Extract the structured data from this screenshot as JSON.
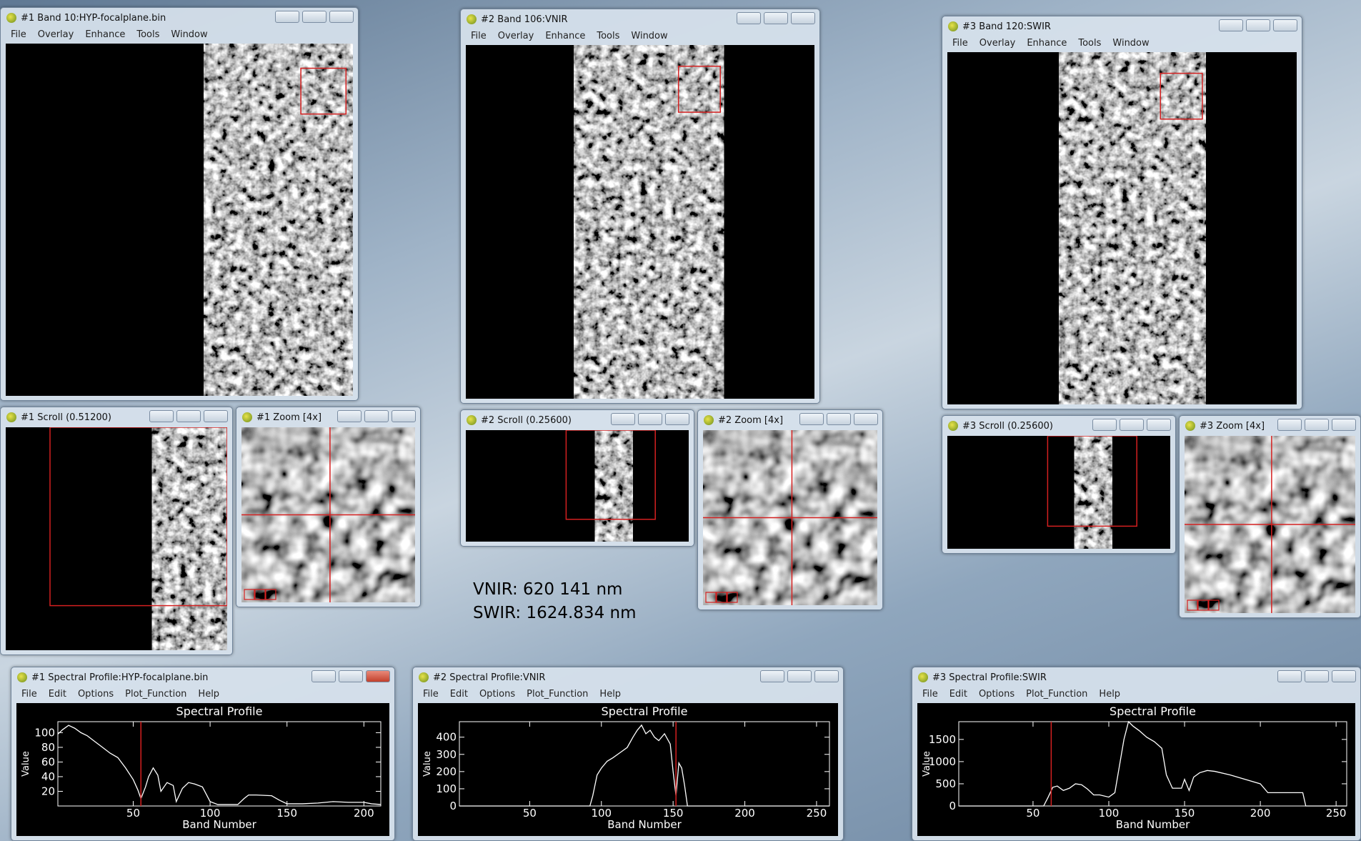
{
  "windows": [
    {
      "title": "#1 Band 10:HYP-focalplane.bin",
      "menu": [
        "File",
        "Overlay",
        "Enhance",
        "Tools",
        "Window"
      ]
    },
    {
      "title": "#2 Band 106:VNIR",
      "menu": [
        "File",
        "Overlay",
        "Enhance",
        "Tools",
        "Window"
      ]
    },
    {
      "title": "#3 Band 120:SWIR",
      "menu": [
        "File",
        "Overlay",
        "Enhance",
        "Tools",
        "Window"
      ]
    },
    {
      "title": "#1 Scroll (0.51200)"
    },
    {
      "title": "#1 Zoom [4x]"
    },
    {
      "title": "#2 Scroll (0.25600)"
    },
    {
      "title": "#2 Zoom [4x]"
    },
    {
      "title": "#3 Scroll (0.25600)"
    },
    {
      "title": "#3 Zoom [4x]"
    },
    {
      "title": "#1 Spectral Profile:HYP-focalplane.bin",
      "menu": [
        "File",
        "Edit",
        "Options",
        "Plot_Function",
        "Help"
      ]
    },
    {
      "title": "#2 Spectral Profile:VNIR",
      "menu": [
        "File",
        "Edit",
        "Options",
        "Plot_Function",
        "Help"
      ]
    },
    {
      "title": "#3 Spectral Profile:SWIR",
      "menu": [
        "File",
        "Edit",
        "Options",
        "Plot_Function",
        "Help"
      ]
    }
  ],
  "annotations": [
    "VNIR: 620 141 nm",
    "SWIR: 1624.834 nm"
  ],
  "chart_data": [
    {
      "type": "line",
      "title": "Spectral Profile",
      "x_label": "Band Number",
      "y_label": "Value",
      "xlim": [
        1,
        211
      ],
      "xticks": [
        50,
        100,
        150,
        200
      ],
      "ylim": [
        0,
        115
      ],
      "yticks": [
        20,
        40,
        60,
        80,
        100
      ],
      "x": [
        1,
        4,
        8,
        12,
        16,
        20,
        25,
        30,
        35,
        40,
        45,
        50,
        53,
        55,
        58,
        60,
        63,
        66,
        68,
        72,
        76,
        78,
        82,
        86,
        90,
        95,
        100,
        105,
        110,
        118,
        122,
        125,
        130,
        140,
        145,
        150,
        160,
        170,
        180,
        190,
        200,
        205,
        211
      ],
      "values": [
        98,
        104,
        110,
        106,
        100,
        96,
        88,
        80,
        72,
        66,
        52,
        36,
        22,
        10,
        26,
        40,
        52,
        42,
        20,
        32,
        28,
        6,
        24,
        32,
        30,
        26,
        6,
        2,
        2,
        2,
        10,
        15,
        15,
        14,
        8,
        3,
        3,
        4,
        6,
        5,
        5,
        3,
        2
      ],
      "color": "#ffffff",
      "cursor_band": 55,
      "cursor_color": "#d42020"
    },
    {
      "type": "line",
      "title": "Spectral Profile",
      "x_label": "Band Number",
      "y_label": "Value",
      "xlim": [
        1,
        259
      ],
      "xticks": [
        50,
        100,
        150,
        200,
        250
      ],
      "ylim": [
        0,
        490
      ],
      "yticks": [
        0,
        100,
        200,
        300,
        400
      ],
      "x": [
        1,
        50,
        92,
        94,
        97,
        100,
        104,
        108,
        113,
        118,
        122,
        125,
        128,
        131,
        134,
        137,
        140,
        144,
        148,
        150,
        152,
        154,
        156,
        158,
        160,
        200,
        259
      ],
      "values": [
        0,
        0,
        0,
        60,
        180,
        220,
        260,
        280,
        310,
        340,
        400,
        440,
        470,
        420,
        440,
        400,
        380,
        420,
        360,
        200,
        60,
        250,
        220,
        120,
        0,
        0,
        0
      ],
      "color": "#ffffff",
      "cursor_band": 152,
      "cursor_color": "#d42020"
    },
    {
      "type": "line",
      "title": "Spectral Profile",
      "x_label": "Band Number",
      "y_label": "Value",
      "xlim": [
        1,
        257
      ],
      "xticks": [
        50,
        100,
        150,
        200,
        250
      ],
      "ylim": [
        0,
        1900
      ],
      "yticks": [
        0,
        500,
        1000,
        1500
      ],
      "x": [
        1,
        50,
        57,
        60,
        63,
        66,
        70,
        74,
        78,
        82,
        86,
        90,
        94,
        100,
        104,
        107,
        110,
        113,
        116,
        120,
        125,
        130,
        135,
        138,
        142,
        148,
        150,
        153,
        156,
        160,
        165,
        170,
        180,
        190,
        200,
        205,
        215,
        228,
        230,
        257
      ],
      "values": [
        0,
        0,
        0,
        200,
        420,
        450,
        350,
        400,
        500,
        480,
        380,
        250,
        250,
        200,
        300,
        900,
        1500,
        1900,
        1800,
        1700,
        1550,
        1450,
        1300,
        700,
        400,
        400,
        600,
        350,
        650,
        750,
        800,
        780,
        700,
        600,
        500,
        300,
        300,
        300,
        0,
        0
      ],
      "color": "#ffffff",
      "cursor_band": 62,
      "cursor_color": "#d42020"
    }
  ]
}
